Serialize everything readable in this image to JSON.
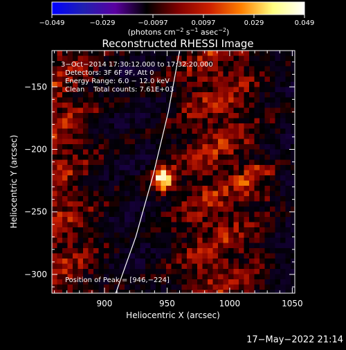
{
  "chart_data": {
    "type": "heatmap",
    "title": "Reconstructed RHESSI Image",
    "xlabel": "Heliocentric X (arcsec)",
    "ylabel": "Heliocentric Y (arcsec)",
    "xlim": [
      858,
      1052
    ],
    "ylim": [
      -315,
      -121
    ],
    "x_ticks": [
      900,
      950,
      1000,
      1050
    ],
    "y_ticks": [
      -150,
      -200,
      -250,
      -300
    ],
    "colorbar": {
      "range": [
        -0.049,
        0.049
      ],
      "ticks": [
        "−0.049",
        "−0.029",
        "−0.0097",
        "0.0097",
        "0.029",
        "0.049"
      ],
      "units_parts": [
        "(photons cm",
        "−2",
        " s",
        "−1",
        " asec",
        "−2",
        ")"
      ],
      "colors": [
        "#0000ff",
        "#2020b0",
        "#5a00a0",
        "#000000",
        "#800000",
        "#cc2000",
        "#ff8000",
        "#ffff80",
        "#ffffff"
      ]
    },
    "annotations": {
      "time": "3−Oct−2014 17:30:12.000 to 17:32:20.000",
      "detectors": "Detectors: 3F 6F 9F, Att 0",
      "energy": "Energy Range: 6.0 − 12.0 keV",
      "clean": "Clean    Total counts: 7.61E+03",
      "peak": "Position of Peak = [946,−224]"
    },
    "peak": {
      "x": 946,
      "y": -224,
      "value": 0.049
    },
    "limb": [
      {
        "x": 909,
        "y": -315
      },
      {
        "x": 925,
        "y": -270
      },
      {
        "x": 939,
        "y": -220
      },
      {
        "x": 951,
        "y": -170
      },
      {
        "x": 960,
        "y": -121
      }
    ]
  },
  "footer": {
    "timestamp": "17−May−2022 21:14"
  },
  "colors": {
    "text": "#ffffff",
    "background": "#000000"
  }
}
